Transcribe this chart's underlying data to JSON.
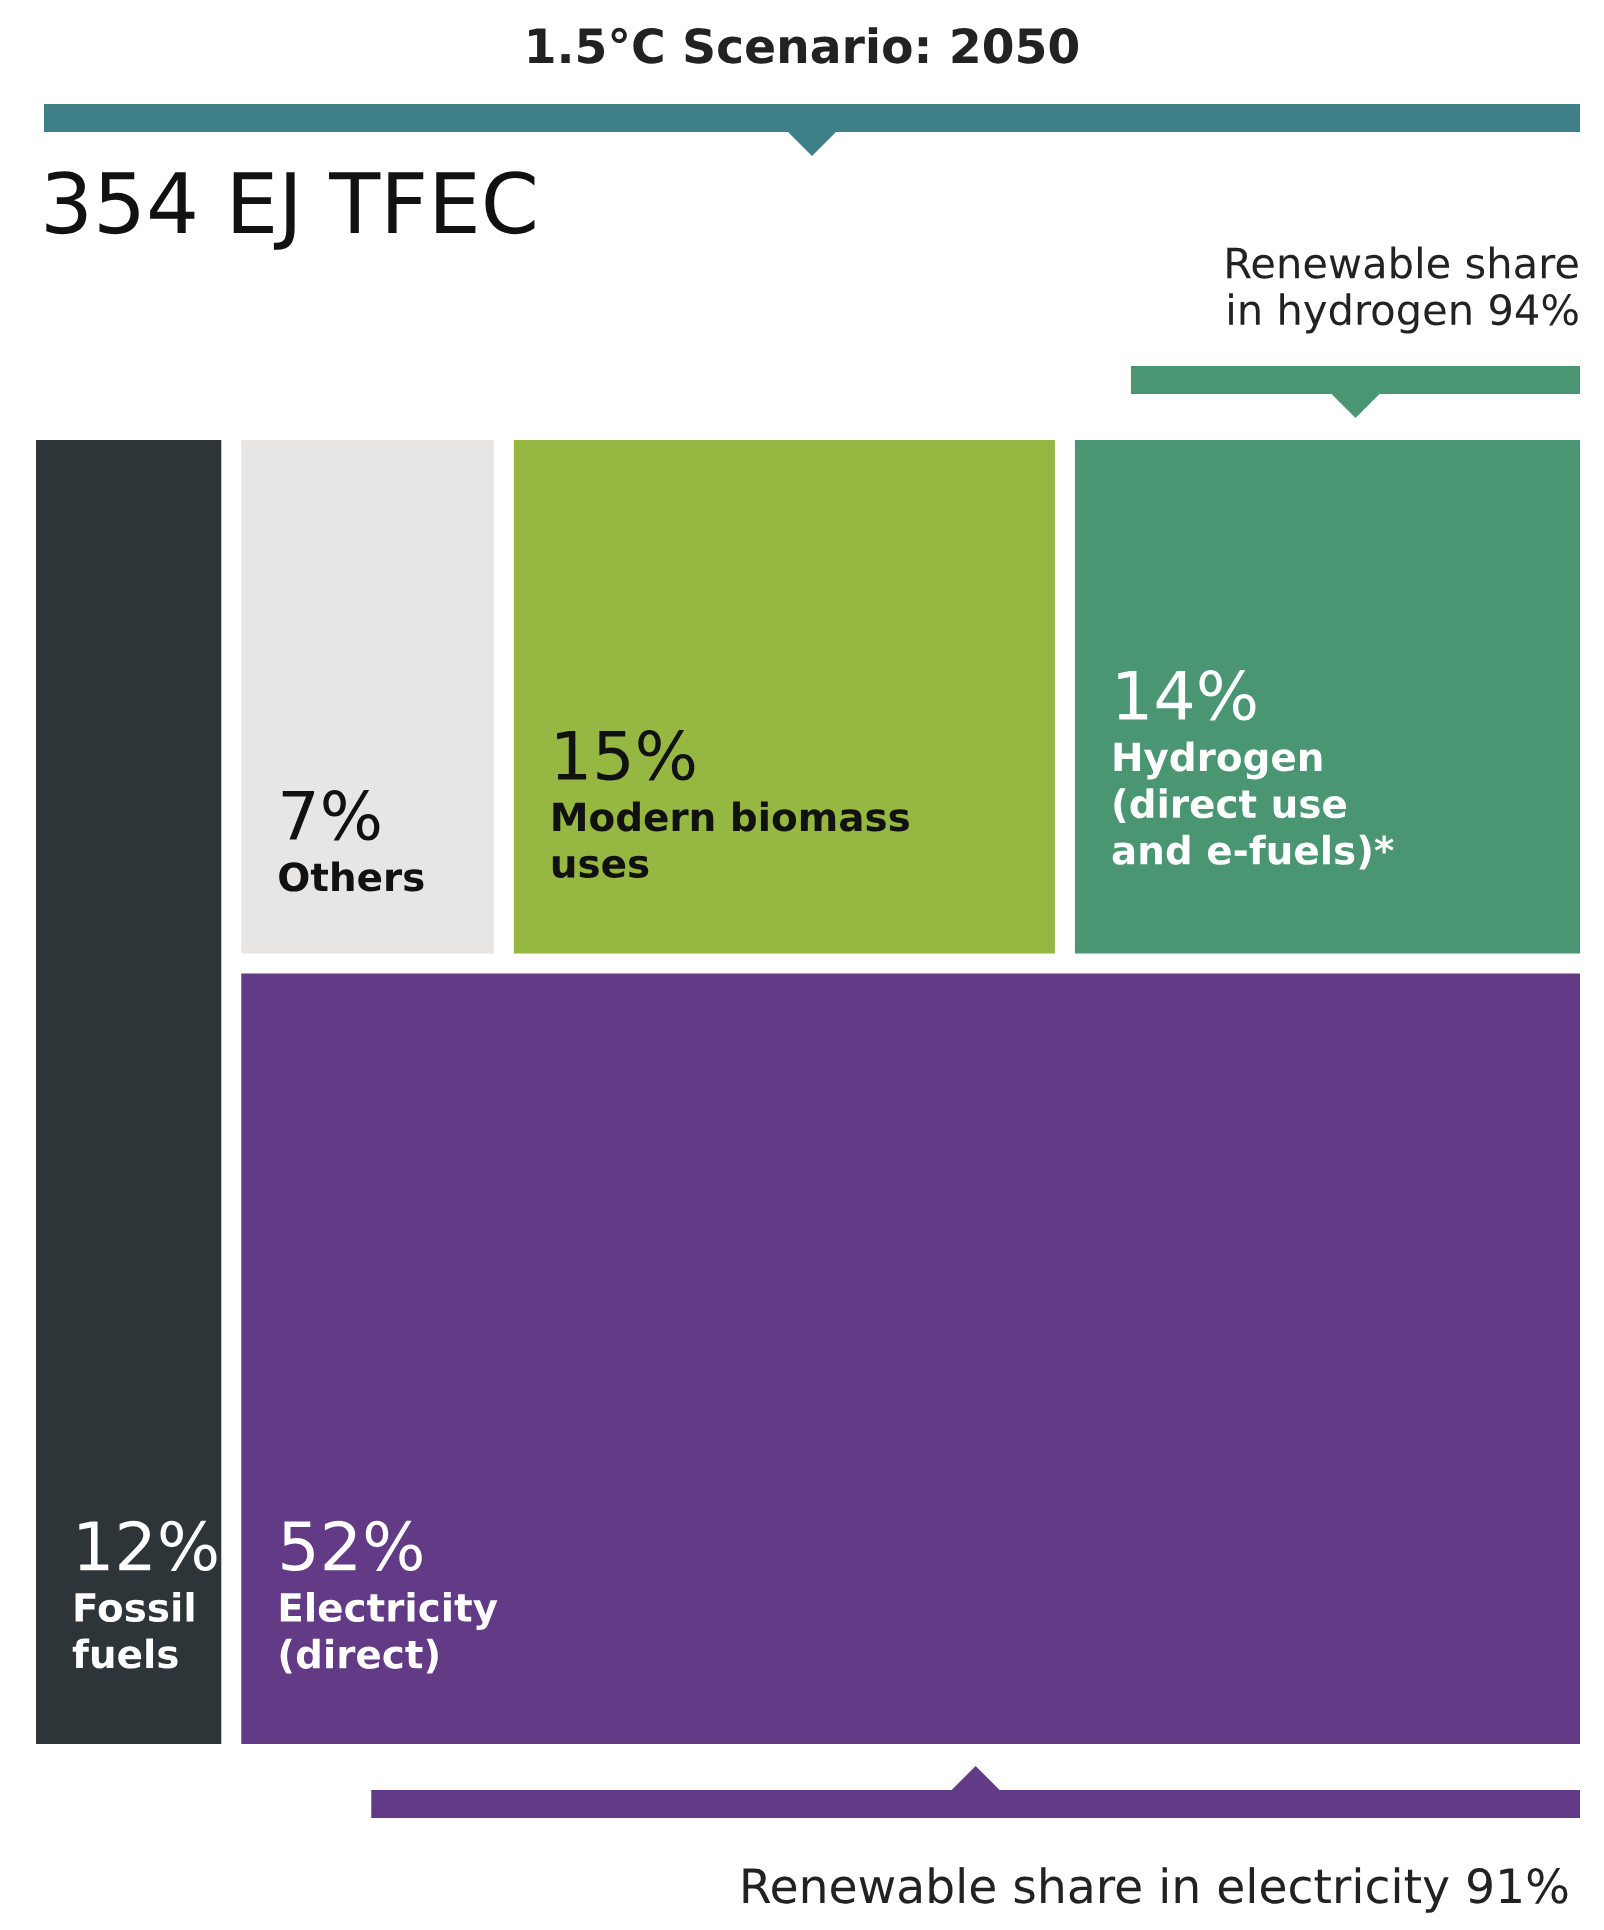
{
  "chart_data": {
    "type": "other",
    "title": "1.5°C Scenario: 2050",
    "categories": [
      "Fossil\nfuels",
      "Others",
      "Modern biomass\nuses",
      "Hydrogen\n(direct use\nand e-fuels)*",
      "Electricity\n(direct)"
    ],
    "values": [
      12,
      7,
      15,
      14,
      52
    ],
    "value_labels": [
      "12%",
      "7%",
      "15%",
      "14%",
      "52%"
    ],
    "colors": [
      "#2d3538",
      "#e8e6e4",
      "#96b843",
      "#4a9673",
      "#633a86"
    ],
    "annotations": [
      "354 EJ TFEC",
      "Renewable share\nin hydrogen 94%",
      "Renewable share in electricity 91%"
    ]
  }
}
